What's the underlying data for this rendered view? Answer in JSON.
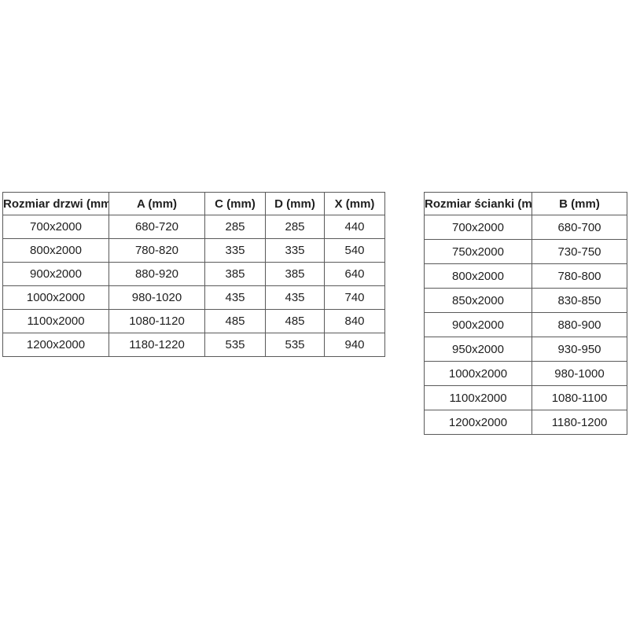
{
  "colors": {
    "background": "#ffffff",
    "border": "#5a5a5a",
    "text": "#1f1f1f"
  },
  "tables": {
    "door_sizes": {
      "headers": [
        "Rozmiar drzwi (mm)",
        "A (mm)",
        "C (mm)",
        "D (mm)",
        "X (mm)"
      ],
      "rows": [
        [
          "700x2000",
          "680-720",
          "285",
          "285",
          "440"
        ],
        [
          "800x2000",
          "780-820",
          "335",
          "335",
          "540"
        ],
        [
          "900x2000",
          "880-920",
          "385",
          "385",
          "640"
        ],
        [
          "1000x2000",
          "980-1020",
          "435",
          "435",
          "740"
        ],
        [
          "1100x2000",
          "1080-1120",
          "485",
          "485",
          "840"
        ],
        [
          "1200x2000",
          "1180-1220",
          "535",
          "535",
          "940"
        ]
      ]
    },
    "wall_sizes": {
      "headers": [
        "Rozmiar ścianki (mm)",
        "B (mm)"
      ],
      "rows": [
        [
          "700x2000",
          "680-700"
        ],
        [
          "750x2000",
          "730-750"
        ],
        [
          "800x2000",
          "780-800"
        ],
        [
          "850x2000",
          "830-850"
        ],
        [
          "900x2000",
          "880-900"
        ],
        [
          "950x2000",
          "930-950"
        ],
        [
          "1000x2000",
          "980-1000"
        ],
        [
          "1100x2000",
          "1080-1100"
        ],
        [
          "1200x2000",
          "1180-1200"
        ]
      ]
    }
  }
}
